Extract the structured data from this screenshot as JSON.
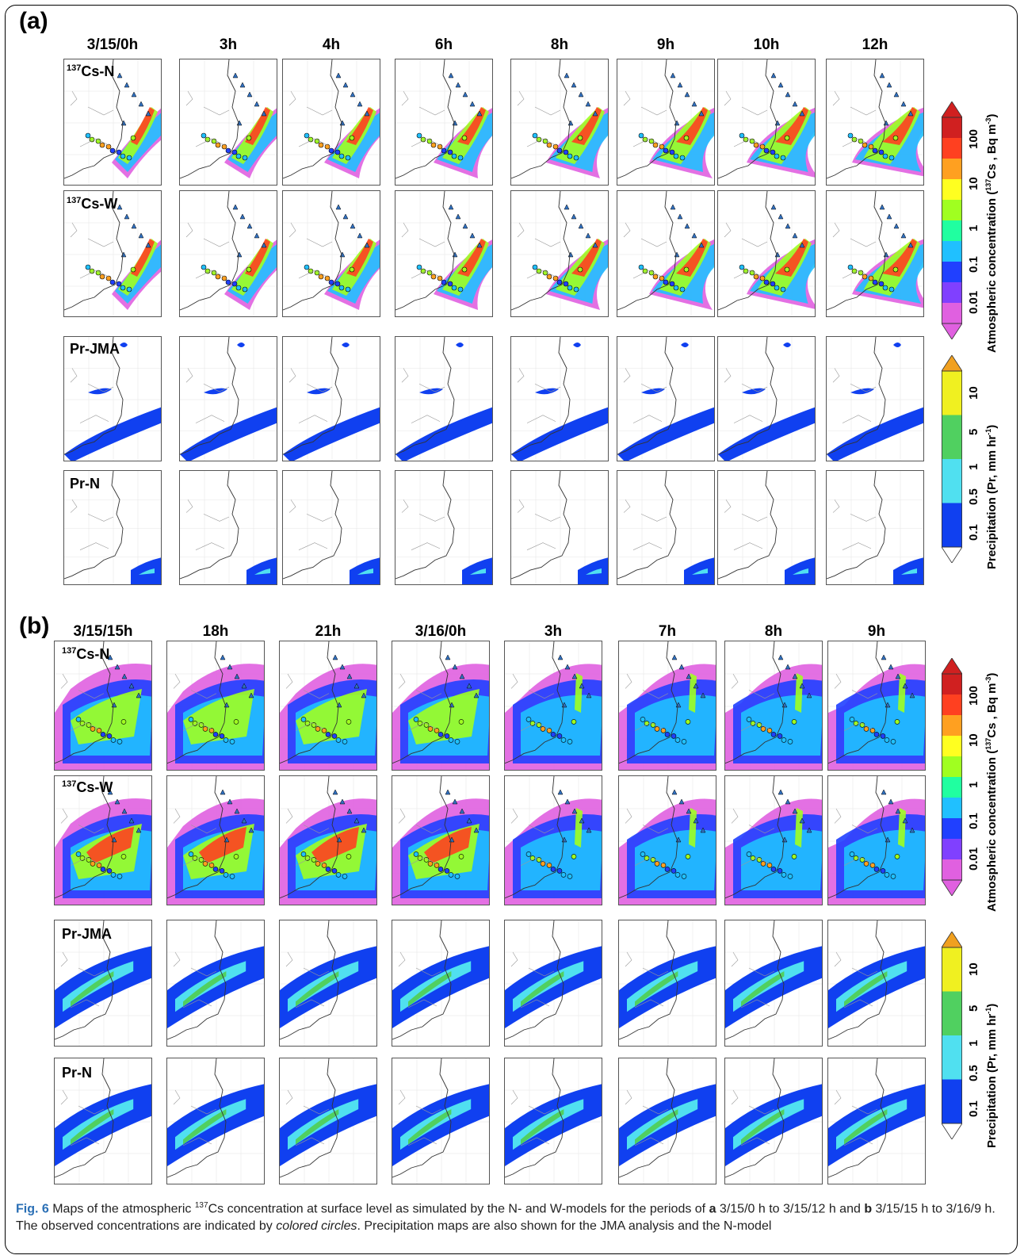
{
  "figure": {
    "part_a_label": "(a)",
    "part_b_label": "(b)",
    "part_a_times": [
      "3/15/0h",
      "3h",
      "4h",
      "6h",
      "8h",
      "9h",
      "10h",
      "12h"
    ],
    "part_b_times": [
      "3/15/15h",
      "18h",
      "21h",
      "3/16/0h",
      "3h",
      "7h",
      "8h",
      "9h"
    ],
    "row_labels": {
      "cs_n_pre": "137",
      "cs_n": "Cs-N",
      "cs_w_pre": "137",
      "cs_w": "Cs-W",
      "pr_jma": "Pr-JMA",
      "pr_n": "Pr-N"
    }
  },
  "colorbars": {
    "concentration": {
      "title_pre": "Atmospheric concentration (",
      "title_sup": "137",
      "title_post": "Cs , Bq m",
      "title_sup2": "-3",
      "title_end": ")",
      "ticks": [
        "0.01",
        "0.1",
        "1",
        "10",
        "100"
      ],
      "colors": [
        "#e060e0",
        "#8040ff",
        "#2040ff",
        "#20c0ff",
        "#20ffa0",
        "#a0ff20",
        "#ffff20",
        "#ffa020",
        "#ff4020",
        "#d02020"
      ]
    },
    "precipitation": {
      "title_pre": "Precipitation (Pr, mm hr",
      "title_sup": "-1",
      "title_end": ")",
      "ticks": [
        "0.1",
        "0.5",
        "1",
        "5",
        "10"
      ],
      "colors": [
        "#ffffff",
        "#1040f0",
        "#50e0f0",
        "#50d060",
        "#f0f020",
        "#f0a020"
      ]
    }
  },
  "caption": {
    "fig_num": "Fig. 6",
    "text1": " Maps of the atmospheric ",
    "sup": "137",
    "text2": "Cs concentration at surface level as simulated by the N- and W-models for the periods of ",
    "a": "a",
    "text3": " 3/15/0 h to 3/15/12 h and ",
    "b": "b",
    "text4": " 3/15/15 h to 3/16/9 h. The observed concentrations are indicated by ",
    "italic": "colored circles",
    "text5": ". Precipitation maps are also shown for the JMA analysis and the N-model"
  }
}
